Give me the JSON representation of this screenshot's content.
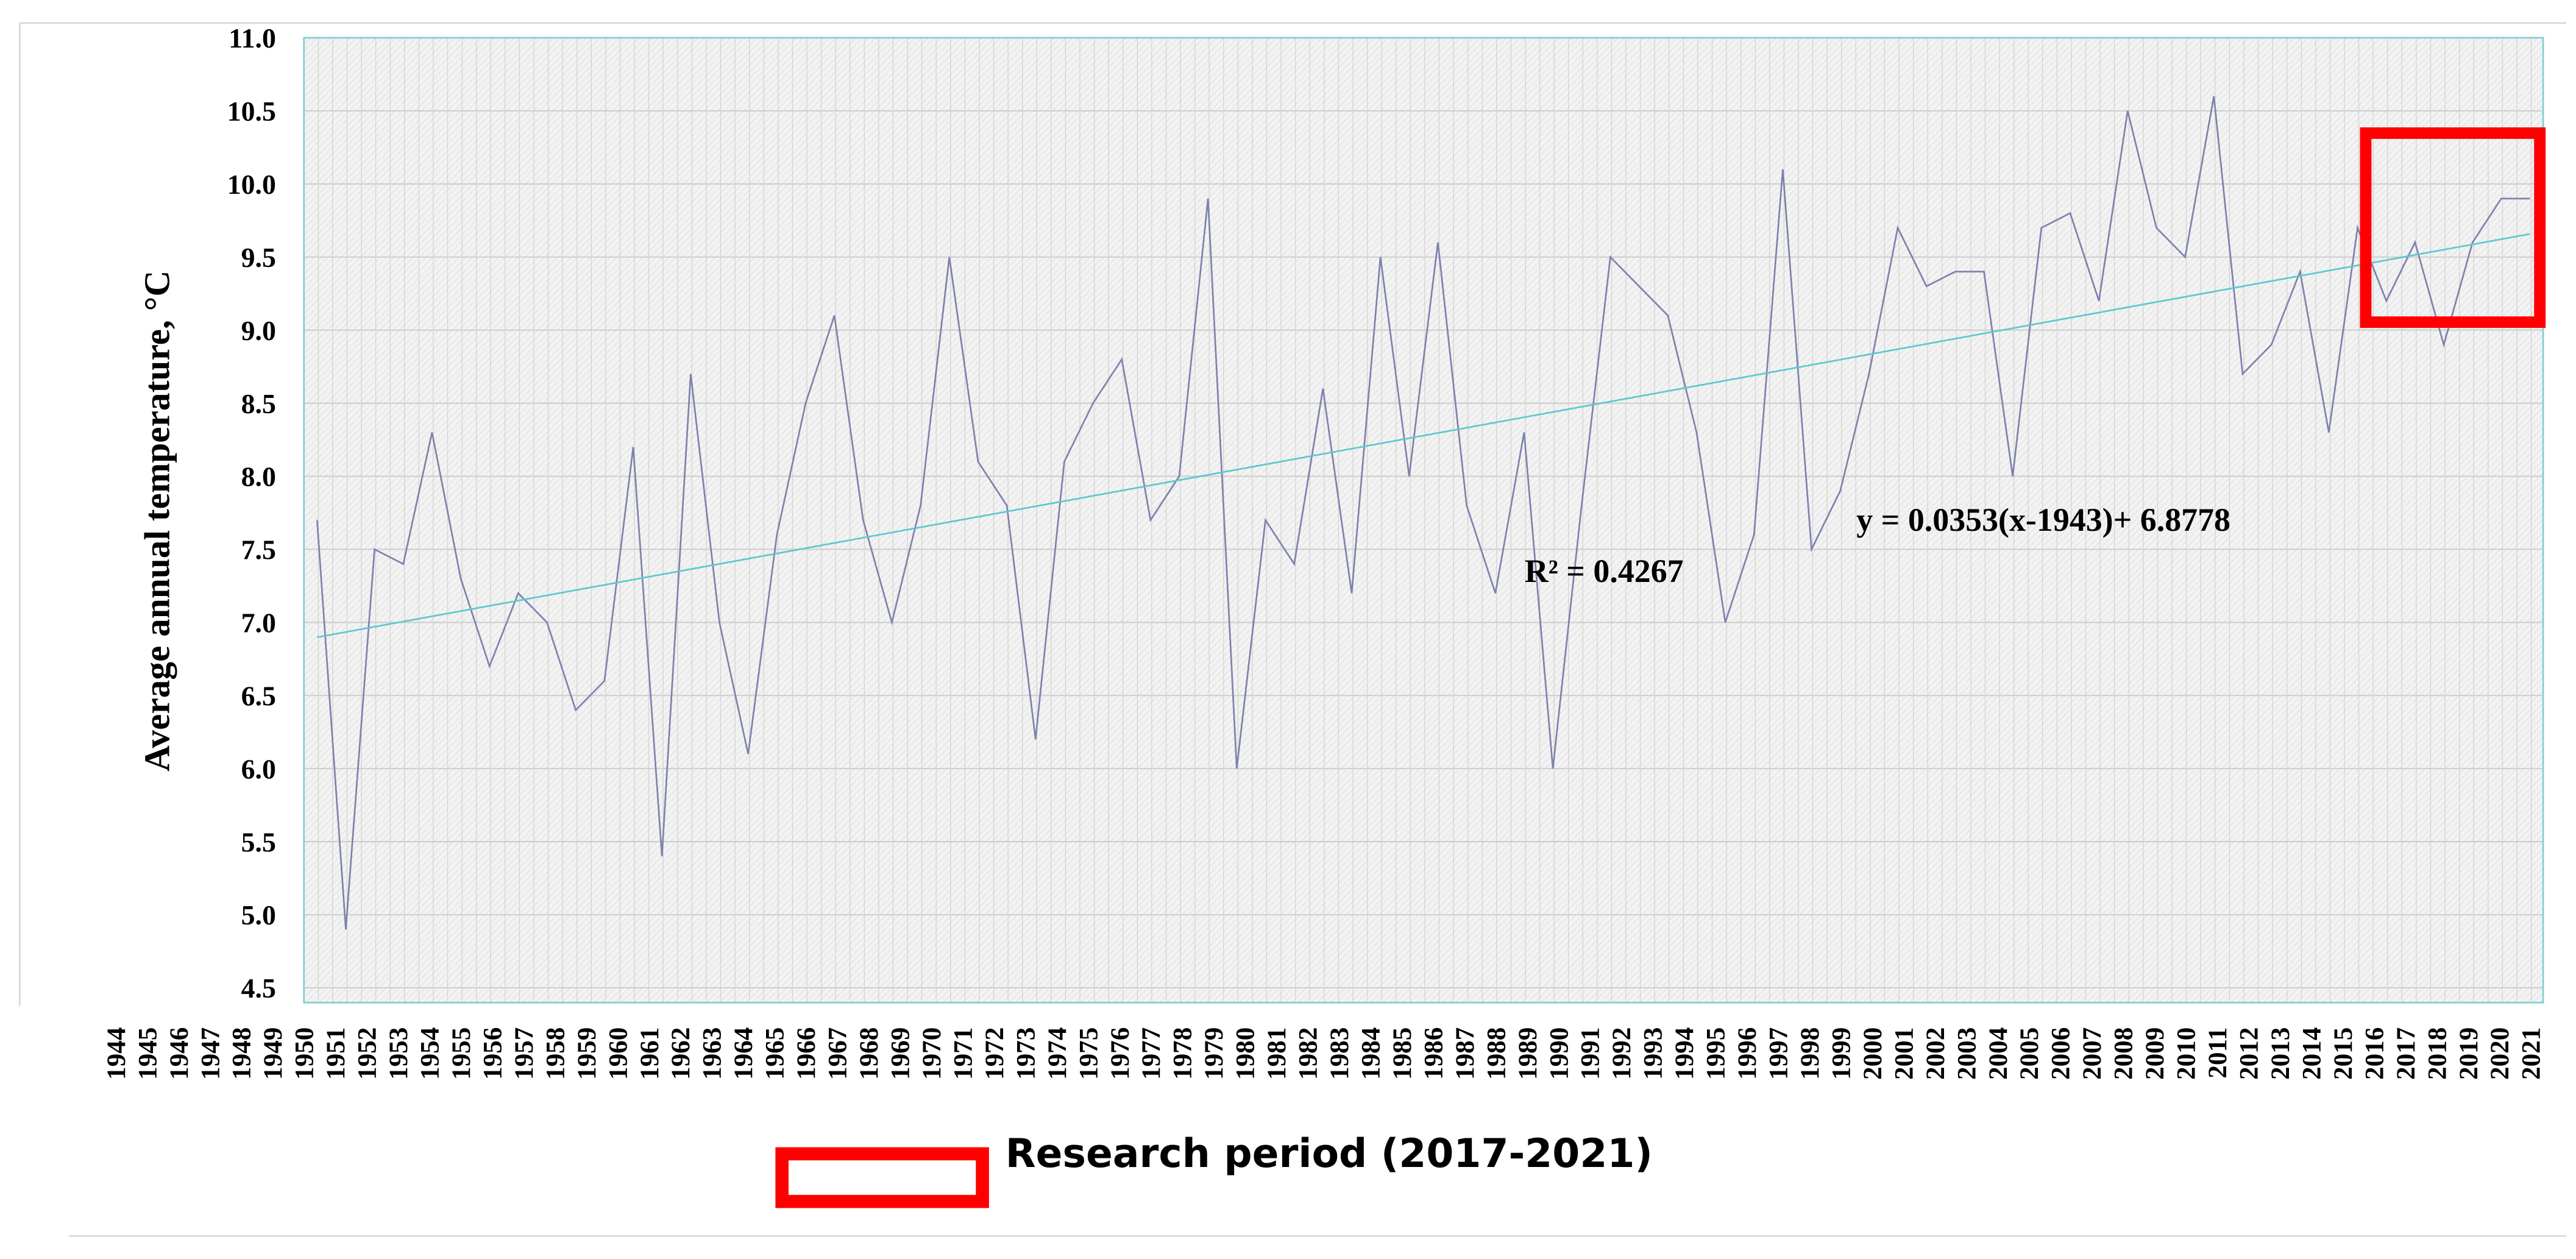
{
  "chart_data": {
    "type": "line",
    "y_label": "Average annual temperature, °C",
    "categories": [
      "1944",
      "1945",
      "1946",
      "1947",
      "1948",
      "1949",
      "1950",
      "1951",
      "1952",
      "1953",
      "1954",
      "1955",
      "1956",
      "1957",
      "1958",
      "1959",
      "1960",
      "1961",
      "1962",
      "1963",
      "1964",
      "1965",
      "1966",
      "1967",
      "1968",
      "1969",
      "1970",
      "1971",
      "1972",
      "1973",
      "1974",
      "1975",
      "1976",
      "1977",
      "1978",
      "1979",
      "1980",
      "1981",
      "1982",
      "1983",
      "1984",
      "1985",
      "1986",
      "1987",
      "1988",
      "1989",
      "1990",
      "1991",
      "1992",
      "1993",
      "1994",
      "1995",
      "1996",
      "1997",
      "1998",
      "1999",
      "2000",
      "2001",
      "2002",
      "2003",
      "2004",
      "2005",
      "2006",
      "2007",
      "2008",
      "2009",
      "2010",
      "2011",
      "2012",
      "2013",
      "2014",
      "2015",
      "2016",
      "2017",
      "2018",
      "2019",
      "2020",
      "2021"
    ],
    "series": [
      {
        "color": "#7e82ad",
        "values": [
          7.7,
          4.9,
          7.5,
          7.4,
          8.3,
          7.3,
          6.7,
          7.2,
          7.0,
          6.4,
          6.6,
          8.2,
          5.4,
          8.7,
          7.0,
          6.1,
          7.6,
          8.5,
          9.1,
          7.7,
          7.0,
          7.8,
          9.5,
          8.1,
          7.8,
          6.2,
          8.1,
          8.5,
          8.8,
          7.7,
          8.0,
          9.9,
          6.0,
          7.7,
          7.4,
          8.6,
          7.2,
          9.5,
          8.0,
          9.6,
          7.8,
          7.2,
          8.3,
          6.0,
          7.8,
          9.5,
          9.3,
          9.1,
          8.3,
          7.0,
          7.6,
          10.1,
          7.5,
          7.9,
          8.7,
          9.7,
          9.3,
          9.4,
          9.4,
          8.0,
          9.7,
          9.8,
          9.2,
          10.5,
          9.7,
          9.5,
          10.6,
          8.7,
          8.9,
          9.4,
          8.3,
          9.7,
          9.2,
          9.6,
          8.9,
          9.6,
          9.9,
          9.9
        ]
      }
    ],
    "trend_color": "#5cc8d0",
    "ylim": [
      4.5,
      11.0
    ],
    "yticks": [
      4.5,
      {
        "value": 5.0,
        "label": "5.0"
      },
      5.5,
      {
        "value": 6.0,
        "label": "6.0"
      },
      6.5,
      {
        "value": 7.0,
        "label": "7.0"
      },
      7.5,
      {
        "value": 8.0,
        "label": "8.0"
      },
      8.5,
      {
        "value": 9.0,
        "label": "9.0"
      },
      9.5,
      {
        "value": 10.0,
        "label": "10.0"
      },
      10.5,
      {
        "value": 11.0,
        "label": "11.0"
      }
    ],
    "grid": true,
    "annotations": [
      "R² = 0.4267",
      "y = 0.0353(x-1943)+ 6.8778"
    ],
    "legend": {
      "label": "Research period (2017-2021)",
      "color": "#ff0000"
    }
  }
}
